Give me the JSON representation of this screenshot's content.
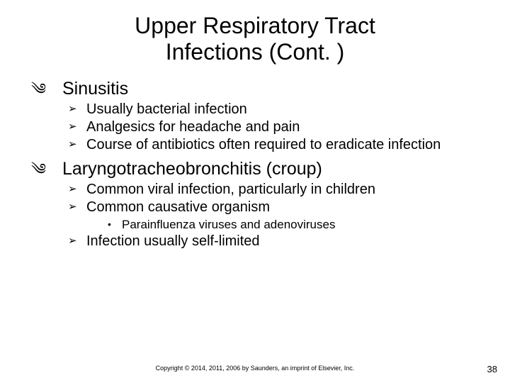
{
  "title_line1": "Upper Respiratory Tract",
  "title_line2": "Infections (Cont. )",
  "sections": [
    {
      "heading": "Sinusitis",
      "items": [
        {
          "text": "Usually bacterial infection"
        },
        {
          "text": "Analgesics for headache and pain"
        },
        {
          "text": "Course of antibiotics often required to eradicate infection"
        }
      ]
    },
    {
      "heading": "Laryngotracheobronchitis (croup)",
      "items": [
        {
          "text": "Common viral infection, particularly in children"
        },
        {
          "text": "Common causative organism",
          "sub": [
            {
              "text": "Parainfluenza viruses and adenoviruses"
            }
          ]
        },
        {
          "text": "Infection usually self-limited"
        }
      ]
    }
  ],
  "bullets": {
    "lvl1": "༄",
    "lvl2": "➢",
    "lvl3": "•"
  },
  "footer": "Copyright © 2014, 2011, 2006 by Saunders, an imprint of Elsevier, Inc.",
  "page_number": "38",
  "colors": {
    "background": "#ffffff",
    "text": "#000000"
  },
  "typography": {
    "title_fontsize": 32,
    "lvl1_fontsize": 25,
    "lvl2_fontsize": 20,
    "lvl3_fontsize": 17,
    "footer_fontsize": 9,
    "pagenum_fontsize": 13
  }
}
